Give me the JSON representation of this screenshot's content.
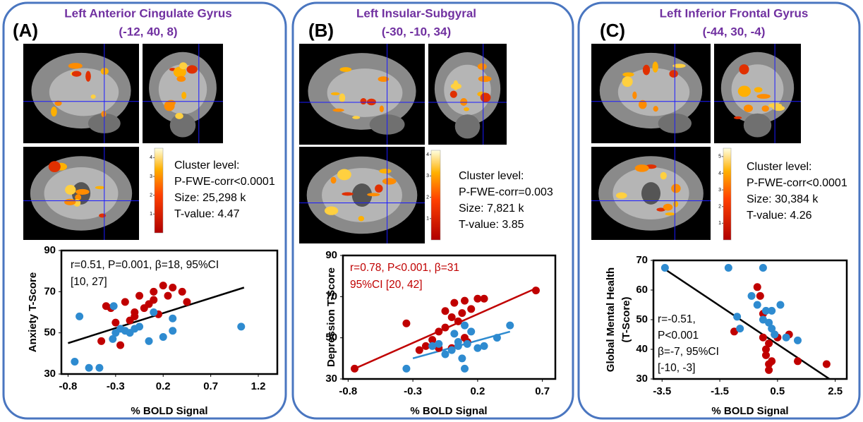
{
  "panels": [
    {
      "label": "(A)",
      "region": "Left Anterior Cingulate Gyrus",
      "coords": "(-12, 40, 8)",
      "cluster": [
        "Cluster level:",
        "P-FWE-corr<0.0001",
        "Size: 25,298 k",
        "T-value: 4.47"
      ],
      "colorbar": {
        "lim": [
          0,
          4.5
        ],
        "ticks": [
          1,
          2,
          3,
          4
        ]
      }
    },
    {
      "label": "(B)",
      "region": "Left Insular-Subgyral",
      "coords": "(-30, -10, 34)",
      "cluster": [
        "Cluster level:",
        "P-FWE-corr=0.003",
        "Size: 7,821 k",
        "T-value: 3.85"
      ],
      "colorbar": {
        "lim": [
          0,
          4.2
        ],
        "ticks": [
          1,
          2,
          3,
          4
        ]
      }
    },
    {
      "label": "(C)",
      "region": "Left Inferior Frontal Gyrus",
      "coords": "(-44, 30, -4)",
      "cluster": [
        "Cluster level:",
        "P-FWE-corr<0.0001",
        "Size: 30,384 k",
        "T-value: 4.26"
      ],
      "colorbar": {
        "lim": [
          0,
          5.5
        ],
        "ticks": [
          1,
          2,
          3,
          4,
          5
        ]
      }
    }
  ],
  "chart_data": [
    {
      "type": "scatter",
      "xlabel": "% BOLD Signal",
      "ylabel": [
        "Anxiety T-Score"
      ],
      "xlim": [
        -0.87,
        1.4
      ],
      "xticks": [
        -0.8,
        -0.3,
        0.2,
        0.7,
        1.2
      ],
      "ylim": [
        30,
        90
      ],
      "yticks": [
        30,
        50,
        70,
        90
      ],
      "annotation": [
        "r=0.51, P=0.001, β=18, 95%CI",
        "[10, 27]"
      ],
      "annotation_color": "#000000",
      "series": [
        {
          "color": "#c00000",
          "x": [
            -0.45,
            -0.4,
            -0.35,
            -0.3,
            -0.25,
            -0.2,
            -0.15,
            -0.1,
            -0.05,
            0,
            0.05,
            0.1,
            0.1,
            0.15,
            0.2,
            0.25,
            0.3,
            0.4,
            0.45,
            -0.1
          ],
          "values": [
            46,
            63,
            62,
            55,
            44,
            65,
            56,
            58,
            68,
            62,
            64,
            66,
            70,
            59,
            73,
            68,
            72,
            70,
            65,
            60
          ]
        },
        {
          "color": "#2e8bd0",
          "x": [
            -0.73,
            -0.68,
            -0.58,
            -0.47,
            -0.32,
            -0.33,
            -0.3,
            -0.25,
            -0.2,
            -0.15,
            -0.1,
            -0.05,
            0.05,
            0.1,
            0.2,
            0.3,
            0.3,
            1.02
          ],
          "values": [
            36,
            58,
            33,
            33,
            63,
            47,
            50,
            52,
            51,
            50,
            52,
            53,
            46,
            60,
            48,
            51,
            57,
            53
          ]
        }
      ],
      "fits": [
        {
          "color": "#000000",
          "x": [
            -0.8,
            1.05
          ],
          "values": [
            45,
            72
          ]
        }
      ]
    },
    {
      "type": "scatter",
      "xlabel": "% BOLD Signal",
      "ylabel": [
        "Depression T-Score"
      ],
      "xlim": [
        -0.84,
        0.8
      ],
      "xticks": [
        -0.8,
        -0.3,
        0.2,
        0.7
      ],
      "ylim": [
        30,
        90
      ],
      "yticks": [
        30,
        50,
        70,
        90
      ],
      "annotation": [
        "r=0.78, P<0.001, β=31",
        "95%CI [20, 42]"
      ],
      "annotation_color": "#c00000",
      "series": [
        {
          "color": "#c00000",
          "x": [
            -0.75,
            -0.35,
            -0.25,
            -0.2,
            -0.15,
            -0.1,
            -0.05,
            -0.05,
            0,
            0,
            0.02,
            0.05,
            0.08,
            0.1,
            0.1,
            0.12,
            0.15,
            0.2,
            0.25,
            0.65,
            -0.1
          ],
          "values": [
            35,
            57,
            44,
            46,
            49,
            53,
            63,
            55,
            60,
            45,
            67,
            58,
            62,
            68,
            50,
            48,
            64,
            69,
            69,
            73,
            45
          ]
        },
        {
          "color": "#2e8bd0",
          "x": [
            -0.35,
            -0.15,
            -0.1,
            -0.05,
            0,
            0.02,
            0.05,
            0.08,
            0.1,
            0.1,
            0.12,
            0.15,
            0.2,
            0.25,
            0.35,
            0.45,
            0.05
          ],
          "values": [
            35,
            46,
            47,
            42,
            44,
            52,
            46,
            40,
            35,
            56,
            47,
            53,
            45,
            46,
            50,
            56,
            48
          ]
        }
      ],
      "fits": [
        {
          "color": "#c00000",
          "x": [
            -0.75,
            0.65
          ],
          "values": [
            35,
            74
          ]
        },
        {
          "color": "#2e8bd0",
          "x": [
            -0.3,
            0.45
          ],
          "values": [
            40,
            53
          ]
        }
      ]
    },
    {
      "type": "scatter",
      "xlabel": "% BOLD Signal",
      "ylabel": [
        "Global Mental Health",
        "(T-Score)"
      ],
      "xlim": [
        -3.8,
        2.9
      ],
      "xticks": [
        -3.5,
        -1.5,
        0.5,
        2.5
      ],
      "ylim": [
        30,
        70
      ],
      "yticks": [
        30,
        40,
        50,
        60,
        70
      ],
      "annotation": [
        "r=-0.51,",
        "P<0.001",
        "β=-7, 95%CI",
        "[-10, -3]"
      ],
      "annotation_color": "#000000",
      "series": [
        {
          "color": "#c00000",
          "x": [
            -1,
            -0.2,
            -0.1,
            0,
            0,
            0.1,
            0.1,
            0.2,
            0.2,
            0.3,
            0.4,
            0.5,
            0.9,
            1.2,
            2.2,
            0.2
          ],
          "values": [
            46,
            61,
            58,
            52,
            44,
            40,
            38,
            35,
            33,
            36,
            45,
            44,
            45,
            36,
            35,
            42
          ]
        },
        {
          "color": "#2e8bd0",
          "x": [
            -3.4,
            -1.2,
            -0.9,
            -0.8,
            -0.4,
            -0.2,
            0,
            0,
            0.1,
            0.2,
            0.3,
            0.3,
            0.4,
            0.6,
            0.8,
            1.2
          ],
          "values": [
            67.5,
            67.5,
            51,
            47,
            58,
            55,
            67.5,
            50,
            53,
            49,
            53,
            47,
            45,
            55,
            44,
            43
          ]
        }
      ],
      "fits": [
        {
          "color": "#000000",
          "x": [
            -3.4,
            2.3
          ],
          "values": [
            67,
            30
          ]
        }
      ]
    }
  ]
}
